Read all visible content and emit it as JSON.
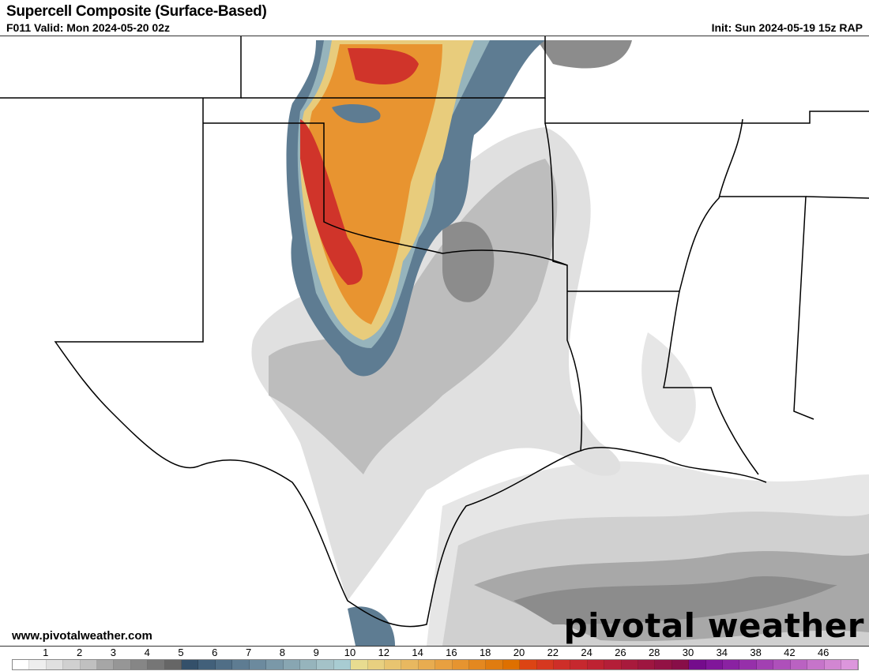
{
  "header": {
    "title": "Supercell Composite (Surface-Based)",
    "valid": "F011 Valid: Mon 2024-05-20 02z",
    "init": "Init: Sun 2024-05-19 15z RAP"
  },
  "footer": {
    "url": "www.pivotalweather.com",
    "logo": "pivotal weather"
  },
  "colorbar": {
    "labels": [
      "1",
      "2",
      "3",
      "4",
      "5",
      "6",
      "7",
      "8",
      "9",
      "10",
      "12",
      "14",
      "16",
      "18",
      "20",
      "22",
      "24",
      "26",
      "28",
      "30",
      "34",
      "38",
      "42",
      "46"
    ],
    "colors": [
      "#ffffff",
      "#eeeeee",
      "#e0e0e0",
      "#d0d0d0",
      "#c0c0c0",
      "#a6a6a6",
      "#969696",
      "#868686",
      "#767676",
      "#666666",
      "#34506a",
      "#42607a",
      "#506e86",
      "#5e7c92",
      "#6c8a9e",
      "#7a98a8",
      "#88a6b2",
      "#96b4bc",
      "#a4c2c8",
      "#a8ccd2",
      "#e8dc90",
      "#e8d080",
      "#e8c470",
      "#e8b860",
      "#e8ac50",
      "#e8a040",
      "#e69430",
      "#e48820",
      "#e07c10",
      "#de7000",
      "#dc4414",
      "#d63820",
      "#ce2e28",
      "#c6282e",
      "#be2232",
      "#b41e38",
      "#a81a3c",
      "#9e1640",
      "#921244",
      "#880e48",
      "#740c8c",
      "#80169a",
      "#8a22a2",
      "#9630aa",
      "#a240b2",
      "#ae50ba",
      "#ba62c2",
      "#c674ca",
      "#d286d2",
      "#dc96dc"
    ]
  },
  "map": {
    "field_colors": {
      "gray_light": "#e6e6e6",
      "gray_mid": "#bdbdbd",
      "gray_dark": "#8c8c8c",
      "blue": "#5e7c92",
      "blue_light": "#96b4bc",
      "yellow": "#e8cc7c",
      "orange": "#e89430",
      "red": "#d0342a"
    }
  }
}
